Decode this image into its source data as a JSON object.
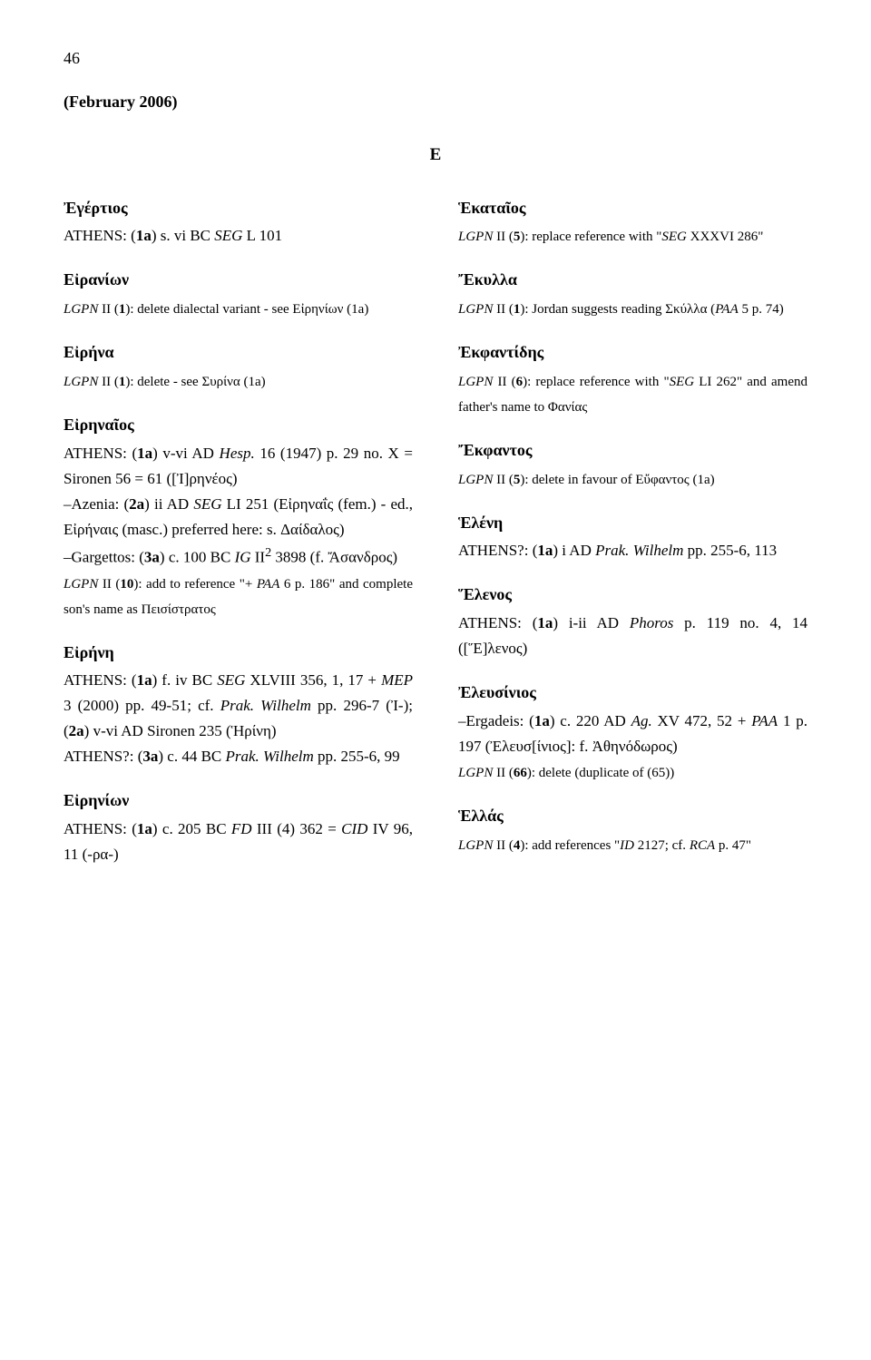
{
  "page_number": "46",
  "date_header": "(February 2006)",
  "section_letter": "Ε",
  "left": [
    {
      "hw": "Ἐγέρτιος",
      "body_html": "ATHENS: (<b>1a</b>) s. vi BC <span class='ital'>SEG</span> L 101"
    },
    {
      "hw": "Εἰρανίων",
      "body_html": "<span class='smallnote'><span class='ital'>LGPN</span> II (<b>1</b>): delete dialectal variant - see Εἰρηνίων (1a)</span>"
    },
    {
      "hw": "Εἰρήνα",
      "body_html": "<span class='smallnote'><span class='ital'>LGPN</span> II (<b>1</b>): delete - see Συρίνα (1a)</span>"
    },
    {
      "hw": "Εἰρηναῖος",
      "body_html": "ATHENS: (<b>1a</b>) v-vi AD <span class='ital'>Hesp.</span> 16 (1947) p. 29 no. X = Sironen 56 = 61 ([Ἰ]ρηνέος)<br>–Azenia: (<b>2a</b>) ii AD <span class='ital'>SEG</span> LI 251 (Εἰρηναΐς (fem.) - ed., Εἰρήναις (masc.) preferred here: s. Δαίδαλος)<br>–Gargettos: (<b>3a</b>) c. 100 BC <span class='ital'>IG</span> II<sup>2</sup> 3898 (f. Ἄσανδρος)<br><span class='smallnote'><span class='ital'>LGPN</span> II (<b>10</b>): add to reference \"+ <span class='ital'>PAA</span> 6 p. 186\" and complete son's name as Πεισίστρατος</span>"
    },
    {
      "hw": "Εἰρήνη",
      "body_html": "ATHENS: (<b>1a</b>) f. iv BC <span class='ital'>SEG</span> XLVIII 356, 1, 17 + <span class='ital'>MEP</span> 3 (2000) pp. 49-51; cf. <span class='ital'>Prak. Wilhelm</span> pp. 296-7 (Ἰ-); (<b>2a</b>) v-vi AD Sironen 235 (Ἡρίνη)<br>ATHENS?: (<b>3a</b>) c. 44 BC <span class='ital'>Prak. Wilhelm</span> pp. 255-6, 99"
    },
    {
      "hw": "Εἰρηνίων",
      "body_html": "ATHENS: (<b>1a</b>) c. 205 BC <span class='ital'>FD</span> III (4) 362 = <span class='ital'>CID</span> IV 96, 11 (-ρα-)"
    }
  ],
  "right": [
    {
      "hw": "Ἑκαταῖος",
      "body_html": "<span class='smallnote'><span class='ital'>LGPN</span> II (<b>5</b>): replace reference with \"<span class='ital'>SEG</span> XXXVI 286\"</span>"
    },
    {
      "hw": "Ἔκυλλα",
      "body_html": "<span class='smallnote'><span class='ital'>LGPN</span> II (<b>1</b>): Jordan suggests reading Σκύλλα (<span class='ital'>PAA</span> 5 p. 74)</span>"
    },
    {
      "hw": "Ἐκφαντίδης",
      "body_html": "<span class='smallnote'><span class='ital'>LGPN</span> II (<b>6</b>): replace reference with \"<span class='ital'>SEG</span> LI 262\" and amend father's name to Φανίας</span>"
    },
    {
      "hw": "Ἔκφαντος",
      "body_html": "<span class='smallnote'><span class='ital'>LGPN</span> II (<b>5</b>): delete in favour of Εὔφαντος (1a)</span>"
    },
    {
      "hw": "Ἑλένη",
      "body_html": "ATHENS?: (<b>1a</b>) i AD <span class='ital'>Prak. Wilhelm</span> pp. 255-6, 113"
    },
    {
      "hw": "Ἕλενος",
      "body_html": "ATHENS: (<b>1a</b>) i-ii AD <span class='ital'>Phoros</span> p. 119 no. 4, 14 ([Ἕ]λενος)"
    },
    {
      "hw": "Ἐλευσίνιος",
      "body_html": "–Ergadeis: (<b>1a</b>) c. 220 AD <span class='ital'>Ag.</span> XV 472, 52 + <span class='ital'>PAA</span> 1 p. 197 (Ἐλευσ[ίνιος]: f. Ἀθηνόδωρος)<br><span class='smallnote'><span class='ital'>LGPN</span> II (<b>66</b>): delete (duplicate of (65))</span>"
    },
    {
      "hw": "Ἑλλάς",
      "body_html": "<span class='smallnote'><span class='ital'>LGPN</span> II (<b>4</b>): add references \"<span class='ital'>ID</span> 2127; cf. <span class='ital'>RCA</span> p. 47\"</span>"
    }
  ]
}
